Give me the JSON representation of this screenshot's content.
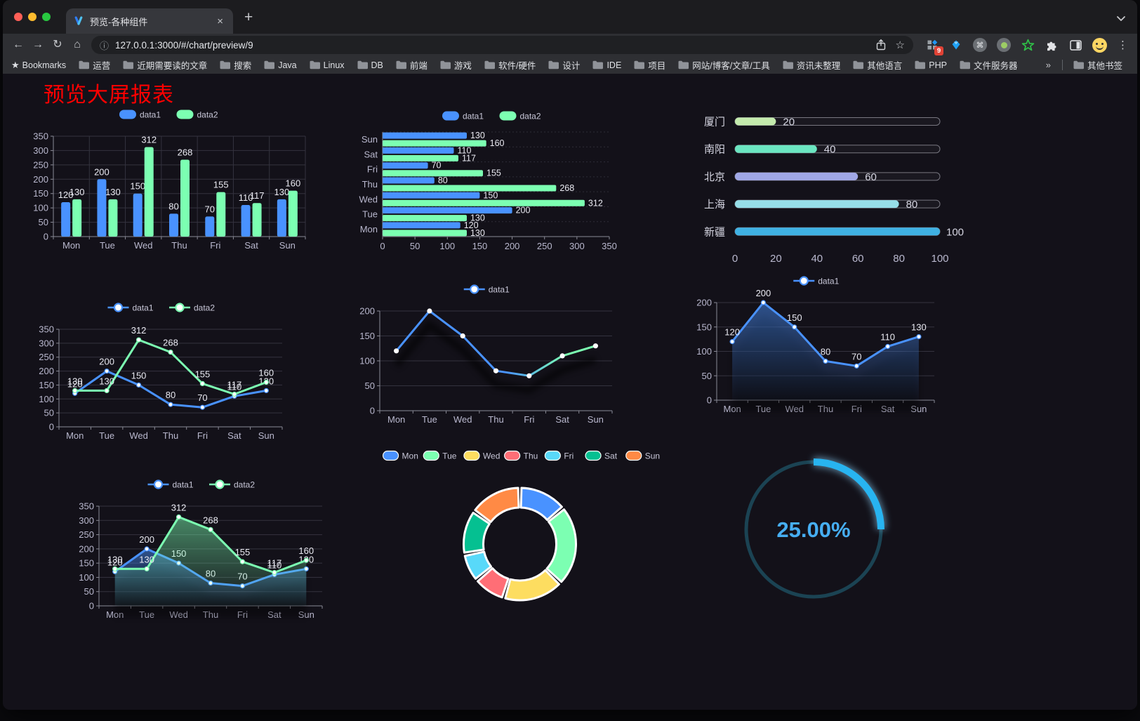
{
  "browser": {
    "tab_title": "预览-各种组件",
    "tab_close": "×",
    "new_tab_button": "+",
    "url": "127.0.0.1:3000/#/chart/preview/9",
    "nav": {
      "back": "←",
      "forward": "→",
      "reload": "↻",
      "home": "⌂",
      "info": "ⓘ",
      "star": "☆"
    },
    "extension_badge_count": "9",
    "window_button_colors": {
      "close": "#ff5f57",
      "minimize": "#febc2e",
      "maximize": "#28c840"
    },
    "bookmarks_label": "Bookmarks",
    "bookmark_folders": [
      "运营",
      "近期需要读的文章",
      "搜索",
      "Java",
      "Linux",
      "DB",
      "前端",
      "游戏",
      "软件/硬件",
      "设计",
      "IDE",
      "项目",
      "网站/博客/文章/工具",
      "资讯未整理",
      "其他语言",
      "PHP",
      "文件服务器"
    ],
    "overflow_chevron": "»",
    "other_bookmarks": "其他书签"
  },
  "page": {
    "title": "预览大屏报表",
    "title_color": "#ff0000",
    "background": "#131119"
  },
  "chart_data": [
    {
      "type": "bar",
      "categories": [
        "Mon",
        "Tue",
        "Wed",
        "Thu",
        "Fri",
        "Sat",
        "Sun"
      ],
      "series": [
        {
          "name": "data1",
          "color": "#4992ff",
          "values": [
            120,
            200,
            150,
            80,
            70,
            110,
            130
          ]
        },
        {
          "name": "data2",
          "color": "#7cffb2",
          "values": [
            130,
            130,
            312,
            268,
            155,
            117,
            160
          ]
        }
      ],
      "ylim": [
        0,
        350
      ],
      "ytick_step": 50,
      "legend_position": "top",
      "value_labels": true,
      "grid_vertical": true
    },
    {
      "type": "hbar",
      "categories": [
        "Mon",
        "Tue",
        "Wed",
        "Thu",
        "Fri",
        "Sat",
        "Sun"
      ],
      "series": [
        {
          "name": "data1",
          "color": "#4992ff",
          "values": [
            120,
            200,
            150,
            80,
            70,
            110,
            130
          ]
        },
        {
          "name": "data2",
          "color": "#7cffb2",
          "values": [
            130,
            130,
            312,
            268,
            155,
            117,
            160
          ]
        }
      ],
      "xlim": [
        0,
        350
      ],
      "xtick_step": 50,
      "legend_position": "top",
      "value_labels": true
    },
    {
      "type": "progress",
      "categories": [
        "厦门",
        "南阳",
        "北京",
        "上海",
        "新疆"
      ],
      "values": [
        20,
        40,
        60,
        80,
        100
      ],
      "colors": [
        "#c4ebad",
        "#6be6c1",
        "#a0a7e6",
        "#96dee8",
        "#3fb1e3"
      ],
      "xlim": [
        0,
        100
      ],
      "xtick_step": 20,
      "value_labels": true
    },
    {
      "type": "line",
      "categories": [
        "Mon",
        "Tue",
        "Wed",
        "Thu",
        "Fri",
        "Sat",
        "Sun"
      ],
      "series": [
        {
          "name": "data1",
          "color": "#4992ff",
          "values": [
            120,
            200,
            150,
            80,
            70,
            110,
            130
          ]
        },
        {
          "name": "data2",
          "color": "#7cffb2",
          "values": [
            130,
            130,
            312,
            268,
            155,
            117,
            160
          ]
        }
      ],
      "ylim": [
        0,
        350
      ],
      "ytick_step": 50,
      "legend_position": "top",
      "value_labels": true
    },
    {
      "type": "line",
      "categories": [
        "Mon",
        "Tue",
        "Wed",
        "Thu",
        "Fri",
        "Sat",
        "Sun"
      ],
      "series": [
        {
          "name": "data1",
          "color_gradient": [
            "#4992ff",
            "#7cffb2"
          ],
          "values": [
            120,
            200,
            150,
            80,
            70,
            110,
            130
          ],
          "line_shadow": true
        }
      ],
      "ylim": [
        0,
        200
      ],
      "ytick_step": 50,
      "legend_position": "top",
      "value_labels": false
    },
    {
      "type": "line",
      "categories": [
        "Mon",
        "Tue",
        "Wed",
        "Thu",
        "Fri",
        "Sat",
        "Sun"
      ],
      "series": [
        {
          "name": "data1",
          "color": "#4992ff",
          "values": [
            120,
            200,
            150,
            80,
            70,
            110,
            130
          ],
          "area": true,
          "area_shadow": true
        }
      ],
      "ylim": [
        0,
        200
      ],
      "ytick_step": 50,
      "legend_position": "top",
      "value_labels": true
    },
    {
      "type": "line",
      "categories": [
        "Mon",
        "Tue",
        "Wed",
        "Thu",
        "Fri",
        "Sat",
        "Sun"
      ],
      "series": [
        {
          "name": "data1",
          "color": "#4992ff",
          "values": [
            120,
            200,
            150,
            80,
            70,
            110,
            130
          ],
          "area": true,
          "area_shadow": true
        },
        {
          "name": "data2",
          "color": "#7cffb2",
          "values": [
            130,
            130,
            312,
            268,
            155,
            117,
            160
          ],
          "area": true
        }
      ],
      "ylim": [
        0,
        350
      ],
      "ytick_step": 50,
      "legend_position": "top",
      "value_labels": true
    },
    {
      "type": "pie",
      "donut": true,
      "labels": [
        "Mon",
        "Tue",
        "Wed",
        "Thu",
        "Fri",
        "Sat",
        "Sun"
      ],
      "values": [
        120,
        200,
        150,
        80,
        70,
        110,
        130
      ],
      "colors": [
        "#4992ff",
        "#7cffb2",
        "#fddd60",
        "#ff6e76",
        "#58d9f9",
        "#05c091",
        "#ff8a45"
      ],
      "legend_position": "top"
    },
    {
      "type": "gauge",
      "value": 25,
      "label": "25.00%",
      "progress_color": "#28b4f0",
      "track_color": "#1b4353",
      "text_color": "#46aef2"
    }
  ]
}
